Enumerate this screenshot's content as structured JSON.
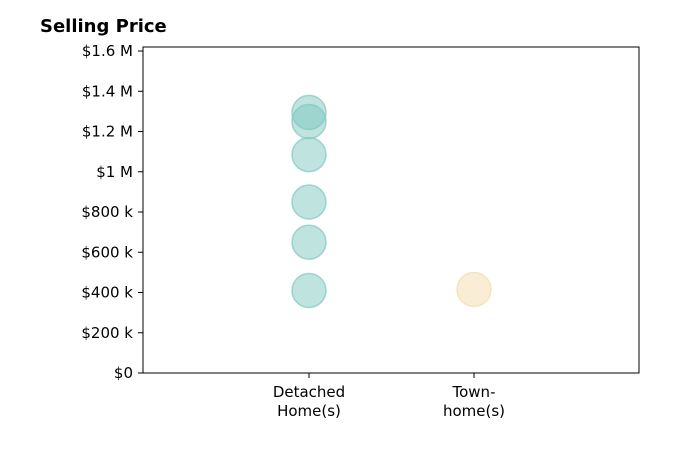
{
  "chart_data": {
    "type": "scatter",
    "title": "Selling Price",
    "xlabel": "",
    "ylabel": "",
    "categories": [
      "Detached\nHome(s)",
      "Town-\nhome(s)"
    ],
    "ylim": [
      0,
      1620000
    ],
    "yticks": [
      {
        "value": 0,
        "label": "$0"
      },
      {
        "value": 200000,
        "label": "$200 k"
      },
      {
        "value": 400000,
        "label": "$400 k"
      },
      {
        "value": 600000,
        "label": "$600 k"
      },
      {
        "value": 800000,
        "label": "$800 k"
      },
      {
        "value": 1000000,
        "label": "$1 M"
      },
      {
        "value": 1200000,
        "label": "$1.2 M"
      },
      {
        "value": 1400000,
        "label": "$1.4 M"
      },
      {
        "value": 1600000,
        "label": "$1.6 M"
      }
    ],
    "series": [
      {
        "category": "Detached\nHome(s)",
        "color": "#7fc7c0",
        "values": [
          410000,
          650000,
          850000,
          1085000,
          1250000,
          1295000
        ]
      },
      {
        "category": "Town-\nhome(s)",
        "color": "#f3dcab",
        "values": [
          415000
        ]
      }
    ],
    "grid": false,
    "legend": "none"
  }
}
